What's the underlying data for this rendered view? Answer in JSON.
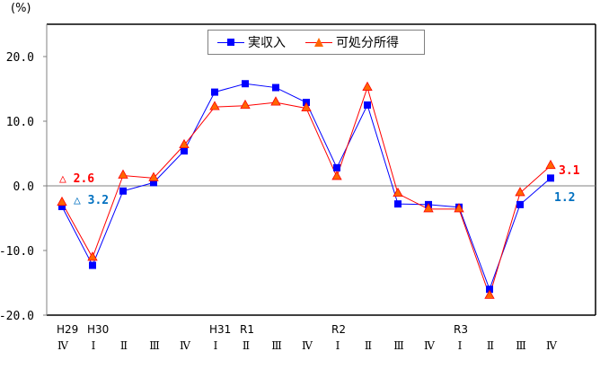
{
  "chart_data": {
    "type": "line",
    "title": "",
    "xlabel": "",
    "ylabel": "(%)",
    "ylim": [
      -20,
      20
    ],
    "yticks": [
      "20.0",
      "10.0",
      "0.0",
      "-10.0",
      "-20.0"
    ],
    "grid": false,
    "legend_position": "top-center",
    "categories": [
      "H29 IV",
      "H30 I",
      "II",
      "III",
      "IV",
      "H31 I",
      "R1 II",
      "III",
      "IV",
      "R2 I",
      "II",
      "III",
      "IV",
      "R3 I",
      "II",
      "III",
      "IV"
    ],
    "category_labels": [
      {
        "era": "H29",
        "quarter": "Ⅳ"
      },
      {
        "era": "H30",
        "quarter": "Ⅰ"
      },
      {
        "era": "",
        "quarter": "Ⅱ"
      },
      {
        "era": "",
        "quarter": "Ⅲ"
      },
      {
        "era": "",
        "quarter": "Ⅳ"
      },
      {
        "era": "H31",
        "quarter": "Ⅰ"
      },
      {
        "era": "R1",
        "quarter": "Ⅱ"
      },
      {
        "era": "",
        "quarter": "Ⅲ"
      },
      {
        "era": "",
        "quarter": "Ⅳ"
      },
      {
        "era": "R2",
        "quarter": "Ⅰ"
      },
      {
        "era": "",
        "quarter": "Ⅱ"
      },
      {
        "era": "",
        "quarter": "Ⅲ"
      },
      {
        "era": "",
        "quarter": "Ⅳ"
      },
      {
        "era": "R3",
        "quarter": "Ⅰ"
      },
      {
        "era": "",
        "quarter": "Ⅱ"
      },
      {
        "era": "",
        "quarter": "Ⅲ"
      },
      {
        "era": "",
        "quarter": "Ⅳ"
      }
    ],
    "series": [
      {
        "name": "実収入",
        "color": "#0000ff",
        "marker": "square",
        "values": [
          -3.2,
          -12.3,
          -0.8,
          0.5,
          5.4,
          14.5,
          15.8,
          15.2,
          12.9,
          2.8,
          12.5,
          -2.8,
          -2.9,
          -3.3,
          -16.0,
          -2.9,
          1.2
        ]
      },
      {
        "name": "可処分所得",
        "color": "#ff0000",
        "marker_fill": "#ff6600",
        "marker": "triangle",
        "values": [
          -2.6,
          -11.1,
          1.6,
          1.2,
          6.3,
          12.2,
          12.4,
          12.9,
          12.0,
          1.4,
          15.2,
          -1.2,
          -3.6,
          -3.6,
          -17.0,
          -1.1,
          3.1
        ]
      }
    ],
    "annotations": [
      {
        "text": "△ 2.6",
        "series": "可処分所得",
        "color": "#ff0000",
        "at": "H29 IV"
      },
      {
        "text": "△ 3.2",
        "series": "実収入",
        "color": "#0070c0",
        "at": "H29 IV"
      },
      {
        "text": "3.1",
        "series": "可処分所得",
        "color": "#ff0000",
        "at": "R3 IV"
      },
      {
        "text": "1.2",
        "series": "実収入",
        "color": "#0070c0",
        "at": "R3 IV"
      }
    ]
  },
  "unit_label": "(%)",
  "legend": {
    "items": [
      {
        "label": "実収入"
      },
      {
        "label": "可処分所得"
      }
    ]
  }
}
